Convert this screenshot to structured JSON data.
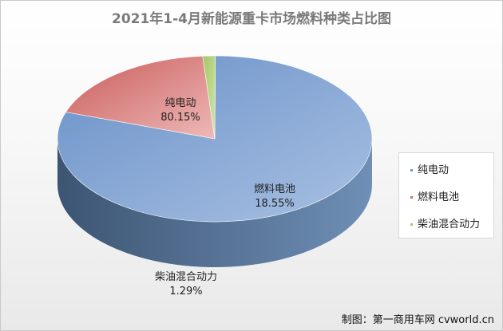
{
  "chart_data": {
    "type": "pie",
    "title": "2021年1-4月新能源重卡市场燃料种类占比图",
    "slices": [
      {
        "name": "纯电动",
        "value": 80.15,
        "label": "80.15%",
        "color": "#6f97cc"
      },
      {
        "name": "燃料电池",
        "value": 18.55,
        "label": "18.55%",
        "color": "#cf6e6c"
      },
      {
        "name": "柴油混合动力",
        "value": 1.29,
        "label": "1.29%",
        "color": "#a6c96a"
      }
    ],
    "legend": {
      "position": "right"
    }
  },
  "credit": "制图：第一商用车网 cvworld.cn"
}
